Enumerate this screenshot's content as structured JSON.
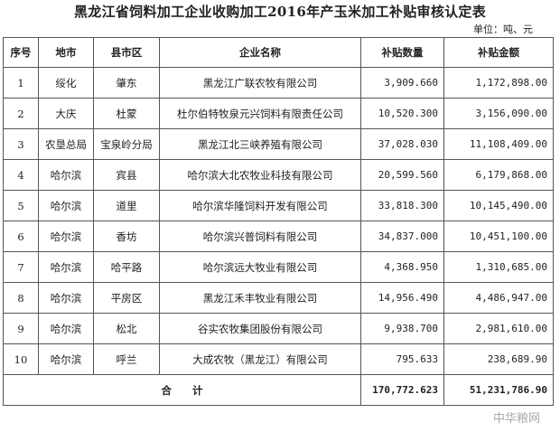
{
  "title": "黑龙江省饲料加工企业收购加工2016年产玉米加工补贴审核认定表",
  "unit": "单位：吨、元",
  "headers": [
    "序号",
    "地市",
    "县市区",
    "企业名称",
    "补贴数量",
    "补贴金额"
  ],
  "rows": [
    [
      "1",
      "绥化",
      "肇东",
      "黑龙江广联农牧有限公司",
      "3,909.660",
      "1,172,898.00"
    ],
    [
      "2",
      "大庆",
      "杜蒙",
      "杜尔伯特牧泉元兴饲料有限责任公司",
      "10,520.300",
      "3,156,090.00"
    ],
    [
      "3",
      "农垦总局",
      "宝泉岭分局",
      "黑龙江北三峡养殖有限公司",
      "37,028.030",
      "11,108,409.00"
    ],
    [
      "4",
      "哈尔滨",
      "宾县",
      "哈尔滨大北农牧业科技有限公司",
      "20,599.560",
      "6,179,868.00"
    ],
    [
      "5",
      "哈尔滨",
      "道里",
      "哈尔滨华隆饲料开发有限公司",
      "33,818.300",
      "10,145,490.00"
    ],
    [
      "6",
      "哈尔滨",
      "香坊",
      "哈尔滨兴普饲料有限公司",
      "34,837.000",
      "10,451,100.00"
    ],
    [
      "7",
      "哈尔滨",
      "哈平路",
      "哈尔滨远大牧业有限公司",
      "4,368.950",
      "1,310,685.00"
    ],
    [
      "8",
      "哈尔滨",
      "平房区",
      "黑龙江禾丰牧业有限公司",
      "14,956.490",
      "4,486,947.00"
    ],
    [
      "9",
      "哈尔滨",
      "松北",
      "谷实农牧集团股份有限公司",
      "9,938.700",
      "2,981,610.00"
    ],
    [
      "10",
      "哈尔滨",
      "呼兰",
      "大成农牧（黑龙江）有限公司",
      "795.633",
      "238,689.90"
    ]
  ],
  "total": {
    "label": "合　　计",
    "quantity": "170,772.623",
    "amount": "51,231,786.90"
  },
  "watermark": "中华粮网"
}
